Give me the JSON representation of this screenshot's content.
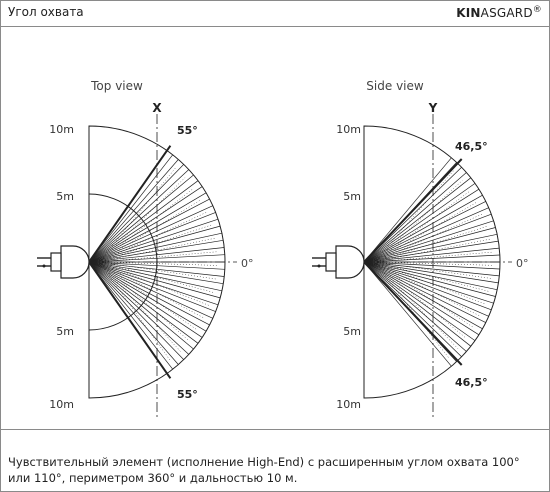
{
  "header": {
    "title": "Угол охвата",
    "brand_bold": "KIN",
    "brand_rest": "ASGARD",
    "brand_mark": "®"
  },
  "diagrams": {
    "top_view": {
      "label": "Top view",
      "axis_letter": "X",
      "angle_top": "55°",
      "angle_bottom": "55°",
      "range_top": "10m",
      "mid_top": "5m",
      "mid_bottom": "5m",
      "range_bottom": "10m",
      "zero": "0°"
    },
    "side_view": {
      "label": "Side view",
      "axis_letter": "Y",
      "angle_top": "46,5°",
      "angle_bottom": "46,5°",
      "range_top": "10m",
      "mid_top": "5m",
      "mid_bottom": "5m",
      "range_bottom": "10m",
      "zero": "0°"
    }
  },
  "caption": "Чувствительный элемент (исполнение High-End) с расширенным углом охвата 100° или 110°, периметром 360° и дальностью 10 м.",
  "colors": {
    "line": "#222222",
    "frame": "#8a8a8a"
  }
}
